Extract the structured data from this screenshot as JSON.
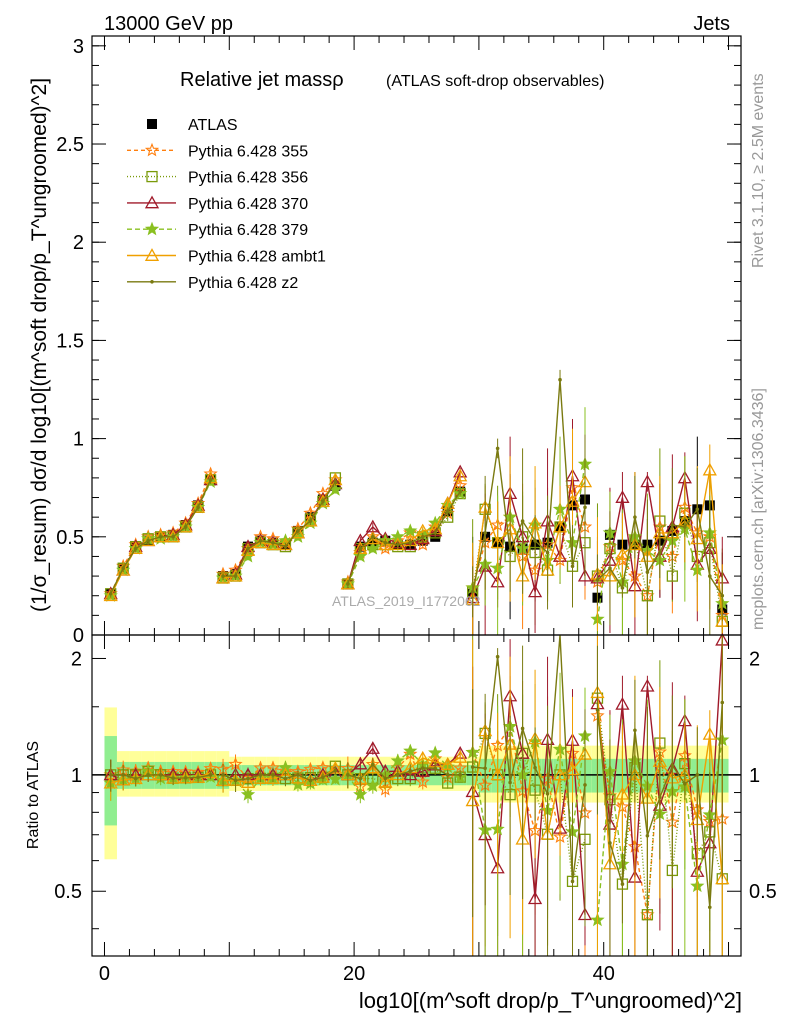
{
  "header": {
    "left": "13000 GeV pp",
    "right": "Jets"
  },
  "side_labels": {
    "top": "Rivet 3.1.10, ≥ 2.5M events",
    "bottom": "mcplots.cern.ch [arXiv:1306.3436]"
  },
  "watermark": "ATLAS_2019_I1772062",
  "colors": {
    "ATLAS": "#000000",
    "p355": "#ff7f0e",
    "p356": "#7a9a0a",
    "p370": "#a01a2a",
    "p379": "#8ac020",
    "ambt1": "#f0a000",
    "z2": "#7a7a10",
    "band_inner": "#90ee90",
    "band_outer": "#ffff99"
  },
  "chart_data": [
    {
      "type": "line",
      "title": "Relative jet massρ",
      "subtitle": "(ATLAS soft-drop observables)",
      "ylabel": "(1/σ_resum) dσ/d log10[(m^soft drop/p_T^ungroomed)^2]",
      "xlim": [
        -1,
        51
      ],
      "ylim": [
        0,
        3.05
      ],
      "yticks": [
        "0",
        "0.5",
        "1",
        "1.5",
        "2",
        "2.5",
        "3"
      ],
      "grid": false,
      "legend_position": "top-left",
      "x": [
        0.5,
        1.5,
        2.5,
        3.5,
        4.5,
        5.5,
        6.5,
        7.5,
        8.5,
        9.5,
        10.5,
        11.5,
        12.5,
        13.5,
        14.5,
        15.5,
        16.5,
        17.5,
        18.5,
        19.5,
        20.5,
        21.5,
        22.5,
        23.5,
        24.5,
        25.5,
        26.5,
        27.5,
        28.5,
        29.5,
        30.5,
        31.5,
        32.5,
        33.5,
        34.5,
        35.5,
        36.5,
        37.5,
        38.5,
        39.5,
        40.5,
        41.5,
        42.5,
        43.5,
        44.5,
        45.5,
        46.5,
        47.5,
        48.5,
        49.5
      ],
      "series": [
        {
          "name": "ATLAS",
          "marker": "square",
          "values": [
            0.21,
            0.34,
            0.45,
            0.48,
            0.5,
            0.51,
            0.56,
            0.66,
            0.79,
            0.3,
            0.31,
            0.45,
            0.48,
            0.47,
            0.46,
            0.53,
            0.6,
            0.69,
            0.76,
            0.26,
            0.45,
            0.47,
            0.48,
            0.46,
            0.46,
            0.48,
            0.5,
            0.63,
            0.73,
            0.21,
            0.5,
            0.47,
            0.45,
            0.44,
            0.46,
            0.47,
            0.55,
            0.66,
            0.69,
            0.19,
            0.51,
            0.46,
            0.46,
            0.46,
            0.48,
            0.53,
            0.58,
            0.64,
            0.66,
            0.13
          ]
        },
        {
          "name": "Pythia 6.428 355",
          "marker": "star-open",
          "dash": "4,3",
          "values": [
            0.21,
            0.35,
            0.46,
            0.5,
            0.51,
            0.52,
            0.57,
            0.67,
            0.82,
            0.31,
            0.33,
            0.44,
            0.5,
            0.49,
            0.47,
            0.54,
            0.62,
            0.72,
            0.79,
            0.27,
            0.42,
            0.5,
            0.44,
            0.48,
            0.52,
            0.46,
            0.55,
            0.62,
            0.76,
            0.24,
            0.47,
            0.56,
            0.6,
            0.4,
            0.33,
            0.46,
            0.38,
            0.75,
            0.55,
            0.27,
            0.45,
            0.38,
            0.3,
            0.2,
            0.55,
            0.4,
            0.65,
            0.52,
            0.5,
            0.1
          ]
        },
        {
          "name": "Pythia 6.428 356",
          "marker": "square-open",
          "dash": "1,2",
          "values": [
            0.21,
            0.34,
            0.45,
            0.49,
            0.5,
            0.5,
            0.55,
            0.65,
            0.79,
            0.29,
            0.3,
            0.44,
            0.47,
            0.46,
            0.45,
            0.52,
            0.59,
            0.68,
            0.8,
            0.26,
            0.44,
            0.46,
            0.46,
            0.45,
            0.45,
            0.5,
            0.52,
            0.6,
            0.72,
            0.22,
            0.64,
            0.47,
            0.4,
            0.5,
            0.42,
            0.33,
            0.55,
            0.35,
            0.47,
            0.3,
            0.44,
            0.24,
            0.48,
            0.2,
            0.58,
            0.3,
            0.62,
            0.4,
            0.47,
            0.07
          ]
        },
        {
          "name": "Pythia 6.428 370",
          "marker": "triangle-open",
          "values": [
            0.21,
            0.33,
            0.45,
            0.48,
            0.5,
            0.51,
            0.56,
            0.66,
            0.79,
            0.29,
            0.31,
            0.45,
            0.48,
            0.47,
            0.46,
            0.52,
            0.58,
            0.69,
            0.77,
            0.26,
            0.48,
            0.55,
            0.49,
            0.47,
            0.46,
            0.49,
            0.53,
            0.67,
            0.83,
            0.19,
            0.35,
            0.27,
            0.72,
            0.5,
            0.22,
            0.58,
            0.4,
            0.81,
            0.3,
            0.29,
            0.38,
            0.7,
            0.25,
            0.78,
            0.4,
            0.55,
            0.8,
            0.36,
            0.44,
            0.29
          ]
        },
        {
          "name": "Pythia 6.428 379",
          "marker": "star-solid",
          "dash": "5,3",
          "values": [
            0.2,
            0.33,
            0.44,
            0.49,
            0.49,
            0.5,
            0.55,
            0.65,
            0.78,
            0.29,
            0.3,
            0.4,
            0.47,
            0.46,
            0.48,
            0.5,
            0.57,
            0.67,
            0.74,
            0.26,
            0.4,
            0.44,
            0.48,
            0.5,
            0.53,
            0.51,
            0.57,
            0.66,
            0.72,
            0.24,
            0.36,
            0.34,
            0.6,
            0.44,
            0.56,
            0.38,
            0.64,
            0.47,
            0.87,
            0.08,
            0.52,
            0.27,
            0.5,
            0.43,
            0.38,
            0.48,
            0.54,
            0.33,
            0.52,
            0.16
          ]
        },
        {
          "name": "Pythia 6.428 ambt1",
          "marker": "triangle-open",
          "values": [
            0.2,
            0.33,
            0.44,
            0.48,
            0.5,
            0.5,
            0.55,
            0.65,
            0.8,
            0.29,
            0.3,
            0.43,
            0.47,
            0.46,
            0.46,
            0.52,
            0.58,
            0.68,
            0.79,
            0.26,
            0.44,
            0.49,
            0.46,
            0.46,
            0.48,
            0.53,
            0.54,
            0.67,
            0.81,
            0.18,
            0.65,
            0.47,
            0.54,
            0.3,
            0.57,
            0.33,
            0.55,
            0.68,
            0.78,
            0.31,
            0.3,
            0.41,
            0.46,
            0.4,
            0.52,
            0.52,
            0.58,
            0.49,
            0.84,
            0.07
          ]
        },
        {
          "name": "Pythia 6.428 z2",
          "marker": "dot",
          "values": [
            0.21,
            0.34,
            0.44,
            0.48,
            0.5,
            0.5,
            0.55,
            0.65,
            0.79,
            0.3,
            0.3,
            0.44,
            0.48,
            0.47,
            0.45,
            0.53,
            0.58,
            0.68,
            0.78,
            0.26,
            0.44,
            0.5,
            0.47,
            0.46,
            0.47,
            0.5,
            0.52,
            0.63,
            0.73,
            0.22,
            0.52,
            0.95,
            0.43,
            0.58,
            0.48,
            0.42,
            1.3,
            0.35,
            0.65,
            0.28,
            0.34,
            0.24,
            0.6,
            0.32,
            0.42,
            0.56,
            0.55,
            0.64,
            0.3,
            0.2
          ]
        }
      ]
    },
    {
      "type": "line",
      "ylabel": "Ratio to ATLAS",
      "xlabel": "log10[(m^soft drop/p_T^ungroomed)^2]",
      "xlim": [
        -1,
        51
      ],
      "ylim": [
        0.34,
        2.3
      ],
      "xticks": [
        "0",
        "20",
        "40"
      ],
      "yticks": [
        "0.5",
        "1",
        "2"
      ],
      "reference_line": 1,
      "note": "series ratios = simulation / ATLAS; uncertainty bands shown around 1"
    }
  ],
  "legend": [
    {
      "label": "ATLAS",
      "key": "ATLAS"
    },
    {
      "label": "Pythia 6.428 355",
      "key": "p355"
    },
    {
      "label": "Pythia 6.428 356",
      "key": "p356"
    },
    {
      "label": "Pythia 6.428 370",
      "key": "p370"
    },
    {
      "label": "Pythia 6.428 379",
      "key": "p379"
    },
    {
      "label": "Pythia 6.428 ambt1",
      "key": "ambt1"
    },
    {
      "label": "Pythia 6.428 z2",
      "key": "z2"
    }
  ]
}
